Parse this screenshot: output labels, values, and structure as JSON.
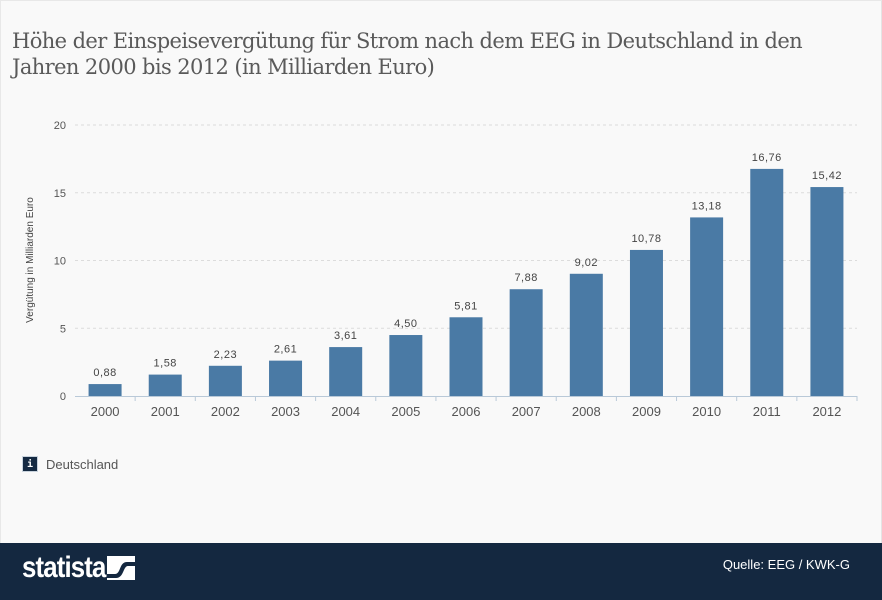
{
  "title": "Höhe der Einspeisevergütung für Strom nach dem EEG in Deutschland in den Jahren 2000 bis 2012 (in Milliarden Euro)",
  "legend": {
    "icon": "i",
    "label": "Deutschland"
  },
  "footer": {
    "brand": "statista",
    "source": "Quelle: EEG / KWK-G"
  },
  "colors": {
    "bar": "#4a7aa5",
    "footer_bg": "#142840",
    "grid": "#dcdcdc",
    "axis": "#b9c9d8"
  },
  "chart_data": {
    "type": "bar",
    "title": "Höhe der Einspeisevergütung für Strom nach dem EEG in Deutschland in den Jahren 2000 bis 2012 (in Milliarden Euro)",
    "xlabel": "",
    "ylabel": "Vergütung in Milliarden Euro",
    "ylim": [
      0,
      20
    ],
    "yticks": [
      0,
      5,
      10,
      15,
      20
    ],
    "grid": true,
    "legend_position": "bottom-left",
    "categories": [
      "2000",
      "2001",
      "2002",
      "2003",
      "2004",
      "2005",
      "2006",
      "2007",
      "2008",
      "2009",
      "2010",
      "2011",
      "2012"
    ],
    "series": [
      {
        "name": "Deutschland",
        "values": [
          0.88,
          1.58,
          2.23,
          2.61,
          3.61,
          4.5,
          5.81,
          7.88,
          9.02,
          10.78,
          13.18,
          16.76,
          15.42
        ],
        "labels": [
          "0,88",
          "1,58",
          "2,23",
          "2,61",
          "3,61",
          "4,50",
          "5,81",
          "7,88",
          "9,02",
          "10,78",
          "13,18",
          "16,76",
          "15,42"
        ]
      }
    ]
  }
}
